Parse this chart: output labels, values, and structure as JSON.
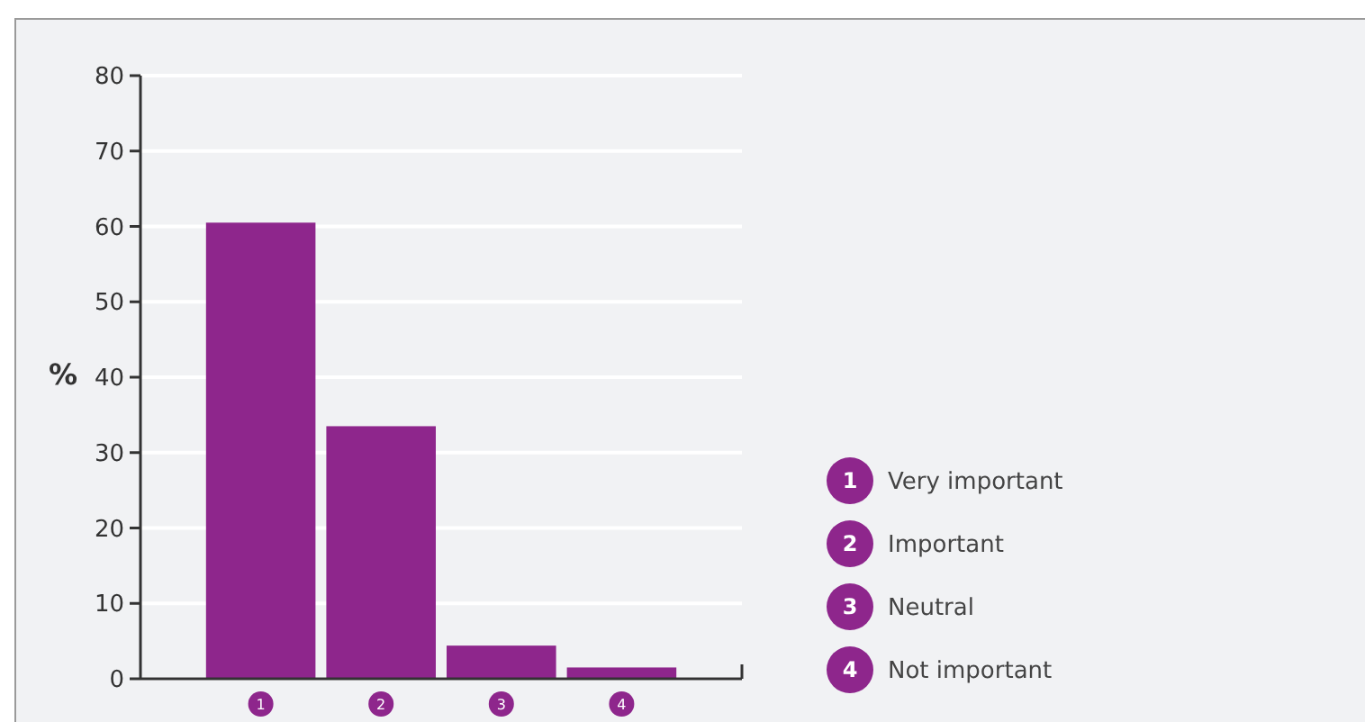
{
  "chart_data": {
    "type": "bar",
    "ylabel": "%",
    "categories": [
      "1",
      "2",
      "3",
      "4"
    ],
    "values": [
      60.5,
      33.5,
      4.4,
      1.5
    ],
    "color": "#8e268c",
    "ylim": [
      0,
      80
    ],
    "yticks": [
      0,
      10,
      20,
      30,
      40,
      50,
      60,
      70,
      80
    ],
    "grid": "y",
    "annotations": [
      "Very important",
      "Important",
      "Neutral",
      "Not important"
    ]
  }
}
